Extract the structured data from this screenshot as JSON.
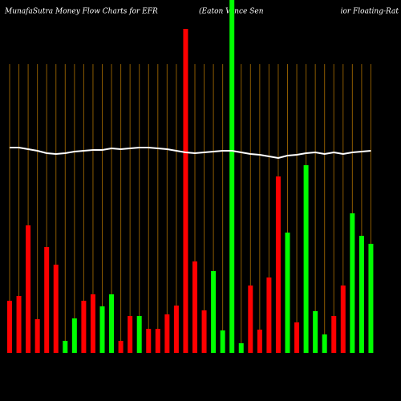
{
  "chart_data": {
    "type": "bar",
    "title": "MunafaSutra  Money Flow  Charts for EFR",
    "subtitle_left": "(Eaton  Vance  Sen",
    "subtitle_right": "ior Floating-Rat",
    "values": [
      65,
      71,
      159,
      42,
      132,
      110,
      15,
      43,
      65,
      73,
      58,
      73,
      15,
      46,
      46,
      30,
      30,
      48,
      59,
      404,
      114,
      53,
      102,
      28,
      450,
      12,
      84,
      29,
      94,
      220,
      150,
      38,
      234,
      52,
      23,
      46,
      84,
      174,
      146,
      136
    ],
    "colors": [
      "#ff0000",
      "#ff0000",
      "#ff0000",
      "#ff0000",
      "#ff0000",
      "#ff0000",
      "#00ff00",
      "#00ff00",
      "#ff0000",
      "#ff0000",
      "#00ff00",
      "#00ff00",
      "#ff0000",
      "#ff0000",
      "#00ff00",
      "#ff0000",
      "#ff0000",
      "#ff0000",
      "#ff0000",
      "#ff0000",
      "#ff0000",
      "#ff0000",
      "#00ff00",
      "#00ff00",
      "#00ff00",
      "#00ff00",
      "#ff0000",
      "#ff0000",
      "#ff0000",
      "#ff0000",
      "#00ff00",
      "#ff0000",
      "#00ff00",
      "#00ff00",
      "#00ff00",
      "#ff0000",
      "#ff0000",
      "#00ff00",
      "#00ff00",
      "#00ff00"
    ],
    "line_values": [
      256,
      256,
      254,
      252,
      249,
      248,
      249,
      251,
      252,
      253,
      253,
      255,
      254,
      255,
      256,
      256,
      255,
      254,
      252,
      250,
      249,
      250,
      251,
      252,
      252,
      250,
      248,
      247,
      245,
      243,
      246,
      247,
      249,
      250,
      248,
      250,
      248,
      250,
      251,
      252
    ],
    "line_color": "#ffffff",
    "grid_color": "#8b5a00",
    "ylim": [
      0,
      440
    ]
  }
}
